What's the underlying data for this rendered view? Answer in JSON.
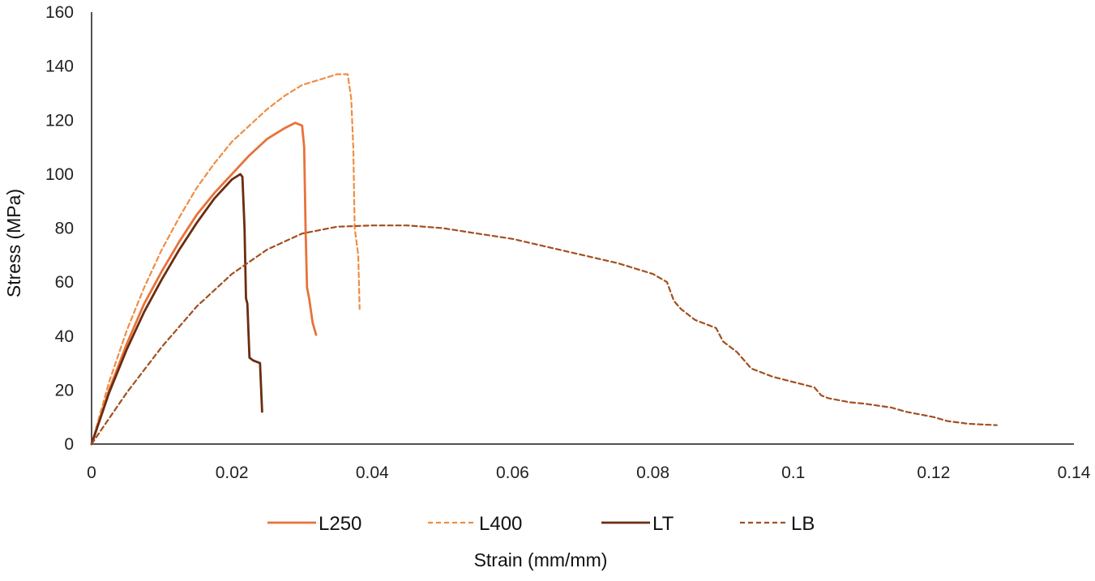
{
  "chart_data": {
    "type": "line",
    "title": "",
    "xlabel": "Strain (mm/mm)",
    "ylabel": "Stress (MPa)",
    "xlim": [
      0,
      0.14
    ],
    "ylim": [
      0,
      160
    ],
    "x_ticks": [
      0,
      0.02,
      0.04,
      0.06,
      0.08,
      0.1,
      0.12,
      0.14
    ],
    "x_tick_labels": [
      "0",
      "0.02",
      "0.04",
      "0.06",
      "0.08",
      "0.1",
      "0.12",
      "0.14"
    ],
    "y_ticks": [
      0,
      20,
      40,
      60,
      80,
      100,
      120,
      140,
      160
    ],
    "y_tick_labels": [
      "0",
      "20",
      "40",
      "60",
      "80",
      "100",
      "120",
      "140",
      "160"
    ],
    "grid": false,
    "legend_position": "bottom",
    "series": [
      {
        "name": "L250",
        "color": "#E87239",
        "dash": "solid",
        "x": [
          0,
          0.0025,
          0.005,
          0.0075,
          0.01,
          0.0125,
          0.015,
          0.0175,
          0.02,
          0.0225,
          0.025,
          0.0275,
          0.029,
          0.03,
          0.0303,
          0.0305,
          0.0307,
          0.031,
          0.0315,
          0.032
        ],
        "y": [
          0,
          20,
          37,
          52,
          64,
          75,
          85,
          93,
          100,
          107,
          113,
          117,
          119,
          118,
          110,
          80,
          58,
          54,
          45,
          40.5
        ]
      },
      {
        "name": "L400",
        "color": "#EE8E46",
        "dash": "dashed",
        "x": [
          0,
          0.0025,
          0.005,
          0.0075,
          0.01,
          0.0125,
          0.015,
          0.0175,
          0.02,
          0.0225,
          0.025,
          0.0275,
          0.03,
          0.0325,
          0.035,
          0.0365,
          0.037,
          0.0373,
          0.0375,
          0.038,
          0.0382
        ],
        "y": [
          0,
          23,
          42,
          58,
          72,
          84,
          95,
          104,
          112,
          118,
          124,
          129,
          133,
          135,
          137,
          137,
          128,
          110,
          80,
          70,
          50
        ]
      },
      {
        "name": "LT",
        "color": "#6B2C10",
        "dash": "solid",
        "x": [
          0,
          0.0025,
          0.005,
          0.0075,
          0.01,
          0.0125,
          0.015,
          0.0175,
          0.02,
          0.0212,
          0.0215,
          0.0218,
          0.022,
          0.0222,
          0.0225,
          0.023,
          0.0235,
          0.024,
          0.0243
        ],
        "y": [
          0,
          19,
          35,
          49,
          61,
          72,
          82,
          91,
          98,
          100,
          99,
          80,
          54,
          52,
          32,
          31,
          30.5,
          30,
          12
        ]
      },
      {
        "name": "LB",
        "color": "#A24F1E",
        "dash": "dashed",
        "x": [
          0,
          0.005,
          0.01,
          0.015,
          0.02,
          0.025,
          0.03,
          0.035,
          0.04,
          0.045,
          0.05,
          0.055,
          0.06,
          0.065,
          0.07,
          0.075,
          0.08,
          0.082,
          0.083,
          0.084,
          0.086,
          0.089,
          0.09,
          0.092,
          0.094,
          0.097,
          0.1,
          0.103,
          0.104,
          0.105,
          0.108,
          0.11,
          0.114,
          0.116,
          0.119,
          0.12,
          0.122,
          0.125,
          0.129
        ],
        "y": [
          0,
          19,
          36,
          51,
          63,
          72,
          78,
          80.5,
          81,
          81,
          80,
          78,
          76,
          73,
          70,
          67,
          63,
          60,
          53,
          50,
          46,
          43,
          38,
          34,
          28,
          25,
          23,
          21,
          18,
          17,
          15.5,
          15,
          13.5,
          12,
          10.5,
          10,
          8.5,
          7.5,
          7
        ]
      }
    ]
  }
}
